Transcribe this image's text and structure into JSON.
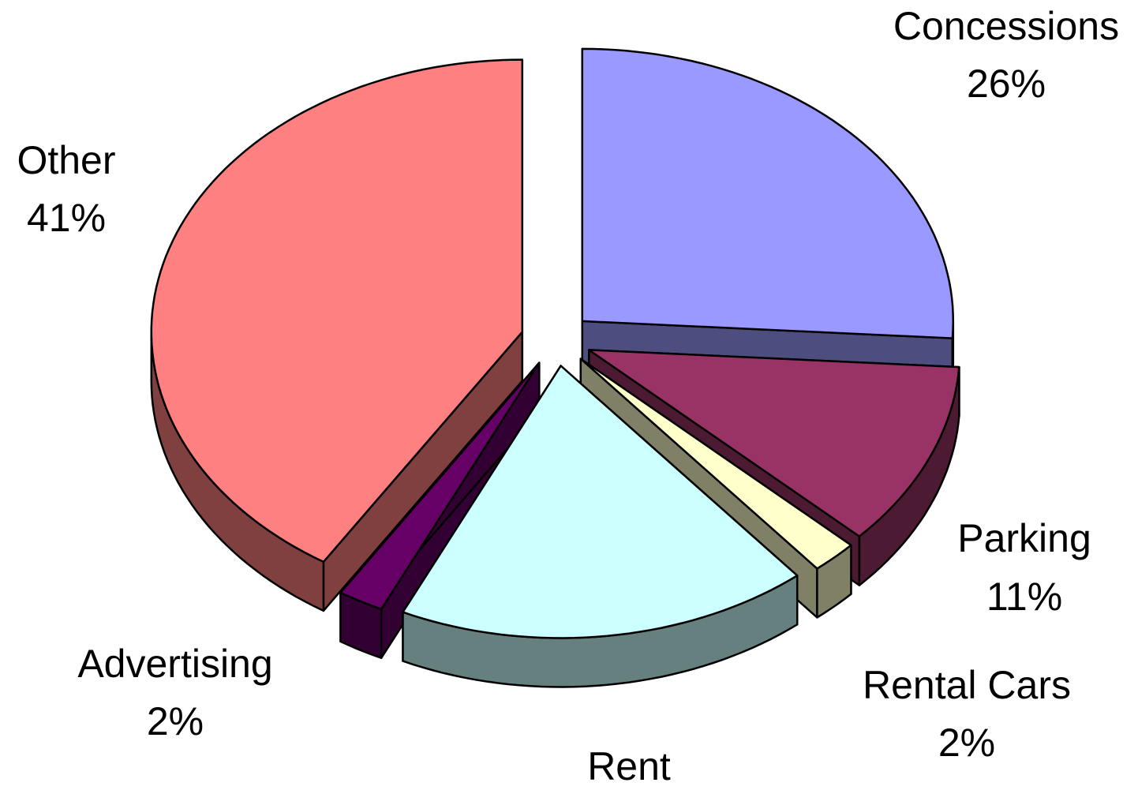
{
  "chart_data": {
    "type": "pie",
    "categories": [
      "Concessions",
      "Parking",
      "Rental Cars",
      "Rent",
      "Advertising",
      "Other"
    ],
    "values": [
      26,
      11,
      2,
      18,
      2,
      41
    ],
    "value_labels": [
      "26%",
      "11%",
      "2%",
      null,
      "2%",
      "41%"
    ],
    "colors": [
      "#9999ff",
      "#993366",
      "#ffffcc",
      "#ccffff",
      "#660066",
      "#ff8080"
    ],
    "exploded": true,
    "three_d": true
  }
}
